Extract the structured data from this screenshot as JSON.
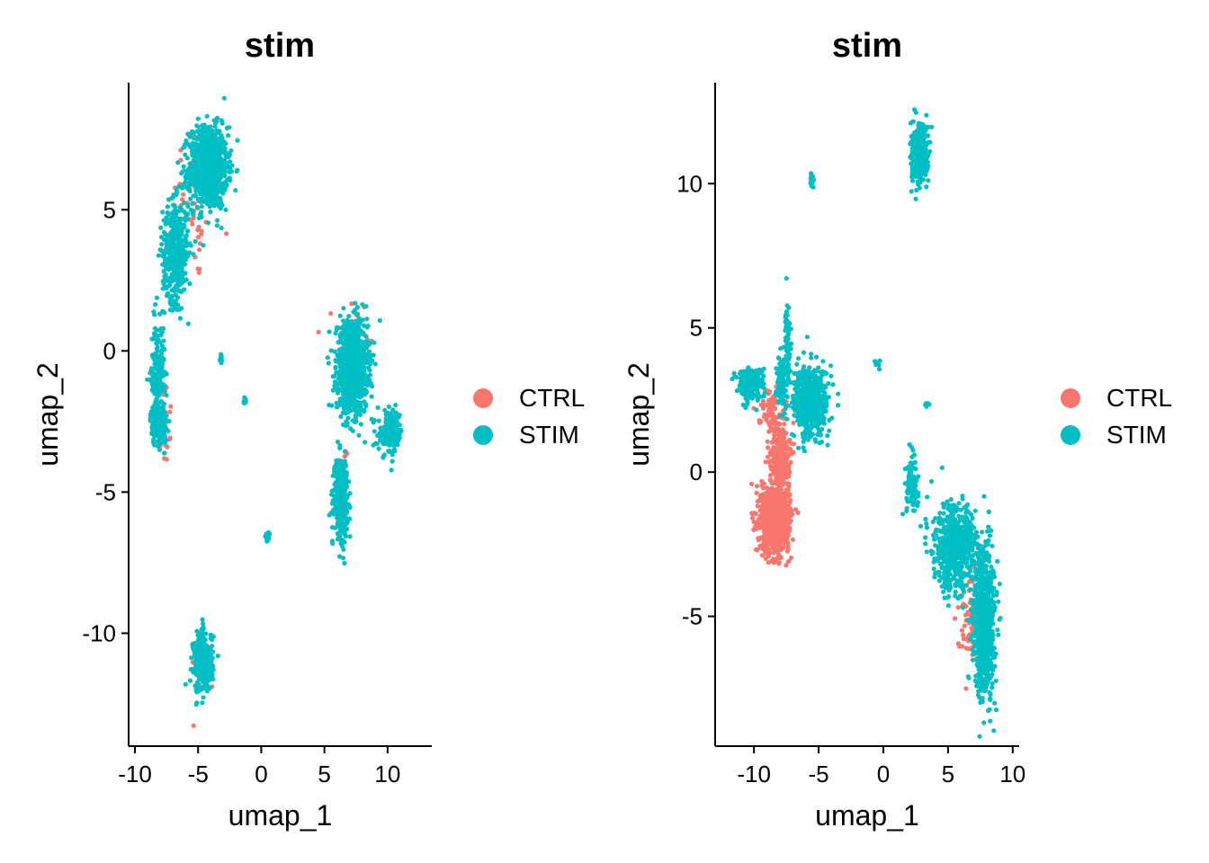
{
  "colors": {
    "CTRL": "#F8766D",
    "STIM": "#00BFC4"
  },
  "chart_data": [
    {
      "type": "scatter",
      "title": "stim",
      "xlabel": "umap_1",
      "ylabel": "umap_2",
      "xlim": [
        -10.5,
        13.5
      ],
      "ylim": [
        -14,
        9.5
      ],
      "xticks": [
        -10,
        -5,
        0,
        5,
        10
      ],
      "xtick_labels": [
        "-10",
        "-5",
        "0",
        "5",
        "10"
      ],
      "yticks": [
        -10,
        -5,
        0,
        5
      ],
      "ytick_labels": [
        "-10",
        "-5",
        "0",
        "5"
      ],
      "legend": {
        "position": "right",
        "entries": [
          "CTRL",
          "STIM"
        ]
      },
      "grid": false,
      "series": [
        {
          "name": "CTRL",
          "color": "#F8766D",
          "clusters": [
            {
              "center": [
                -5.2,
                5.2
              ],
              "spread": [
                1.6,
                2.6
              ],
              "n": 60
            },
            {
              "center": [
                -7.8,
                -2.5
              ],
              "spread": [
                0.8,
                1.4
              ],
              "n": 25
            },
            {
              "center": [
                7.2,
                0.2
              ],
              "spread": [
                1.2,
                1.8
              ],
              "n": 45
            },
            {
              "center": [
                6.5,
                -4.5
              ],
              "spread": [
                0.6,
                1.3
              ],
              "n": 25
            },
            {
              "center": [
                -4.6,
                -11.2
              ],
              "spread": [
                0.9,
                0.9
              ],
              "n": 30
            }
          ]
        },
        {
          "name": "STIM",
          "color": "#00BFC4",
          "clusters": [
            {
              "center": [
                -4.2,
                6.5
              ],
              "spread": [
                1.4,
                1.3
              ],
              "n": 900
            },
            {
              "center": [
                -6.8,
                3.5
              ],
              "spread": [
                0.9,
                1.6
              ],
              "n": 450
            },
            {
              "center": [
                -8.2,
                -0.8
              ],
              "spread": [
                0.5,
                1.6
              ],
              "n": 200
            },
            {
              "center": [
                -8.1,
                -2.6
              ],
              "spread": [
                0.6,
                0.7
              ],
              "n": 160
            },
            {
              "center": [
                7.2,
                -0.6
              ],
              "spread": [
                1.1,
                1.4
              ],
              "n": 1100
            },
            {
              "center": [
                10.2,
                -2.9
              ],
              "spread": [
                0.9,
                0.7
              ],
              "n": 150
            },
            {
              "center": [
                6.3,
                -5.2
              ],
              "spread": [
                0.5,
                1.2
              ],
              "n": 380
            },
            {
              "center": [
                -4.6,
                -11.0
              ],
              "spread": [
                0.7,
                1.0
              ],
              "n": 300
            },
            {
              "center": [
                0.5,
                -6.6
              ],
              "spread": [
                0.15,
                0.15
              ],
              "n": 25
            },
            {
              "center": [
                -1.3,
                -1.8
              ],
              "spread": [
                0.1,
                0.1
              ],
              "n": 10
            },
            {
              "center": [
                -3.2,
                -0.3
              ],
              "spread": [
                0.08,
                0.15
              ],
              "n": 8
            }
          ]
        }
      ]
    },
    {
      "type": "scatter",
      "title": "stim",
      "xlabel": "umap_1",
      "ylabel": "umap_2",
      "xlim": [
        -13,
        10.5
      ],
      "ylim": [
        -9.5,
        13.5
      ],
      "xticks": [
        -10,
        -5,
        0,
        5,
        10
      ],
      "xtick_labels": [
        "-10",
        "-5",
        "0",
        "5",
        "10"
      ],
      "yticks": [
        -5,
        0,
        5,
        10
      ],
      "ytick_labels": [
        "-5",
        "0",
        "5",
        "10"
      ],
      "legend": {
        "position": "right",
        "entries": [
          "CTRL",
          "STIM"
        ]
      },
      "grid": false,
      "series": [
        {
          "name": "CTRL",
          "color": "#F8766D",
          "clusters": [
            {
              "center": [
                -8.4,
                -1.6
              ],
              "spread": [
                1.0,
                1.0
              ],
              "n": 1100
            },
            {
              "center": [
                -8.0,
                0.5
              ],
              "spread": [
                0.7,
                1.2
              ],
              "n": 250
            },
            {
              "center": [
                -8.8,
                2.2
              ],
              "spread": [
                0.8,
                0.6
              ],
              "n": 80
            },
            {
              "center": [
                6.8,
                -5.0
              ],
              "spread": [
                1.0,
                1.5
              ],
              "n": 80
            },
            {
              "center": [
                2.8,
                11.2
              ],
              "spread": [
                0.5,
                0.6
              ],
              "n": 20
            }
          ]
        },
        {
          "name": "STIM",
          "color": "#00BFC4",
          "clusters": [
            {
              "center": [
                -10.3,
                3.1
              ],
              "spread": [
                0.9,
                0.5
              ],
              "n": 260
            },
            {
              "center": [
                -5.6,
                2.4
              ],
              "spread": [
                1.2,
                1.1
              ],
              "n": 650
            },
            {
              "center": [
                -7.4,
                4.5
              ],
              "spread": [
                0.15,
                1.2
              ],
              "n": 100
            },
            {
              "center": [
                -7.9,
                3.1
              ],
              "spread": [
                0.3,
                0.8
              ],
              "n": 120
            },
            {
              "center": [
                2.8,
                11.0
              ],
              "spread": [
                0.6,
                0.9
              ],
              "n": 320
            },
            {
              "center": [
                7.8,
                -5.2
              ],
              "spread": [
                0.7,
                2.2
              ],
              "n": 900
            },
            {
              "center": [
                5.5,
                -2.6
              ],
              "spread": [
                1.5,
                1.3
              ],
              "n": 650
            },
            {
              "center": [
                2.3,
                -0.5
              ],
              "spread": [
                0.5,
                0.9
              ],
              "n": 90
            },
            {
              "center": [
                -5.5,
                10.1
              ],
              "spread": [
                0.15,
                0.25
              ],
              "n": 18
            },
            {
              "center": [
                -0.4,
                3.7
              ],
              "spread": [
                0.2,
                0.15
              ],
              "n": 8
            },
            {
              "center": [
                3.3,
                2.3
              ],
              "spread": [
                0.25,
                0.1
              ],
              "n": 8
            }
          ]
        }
      ]
    }
  ]
}
